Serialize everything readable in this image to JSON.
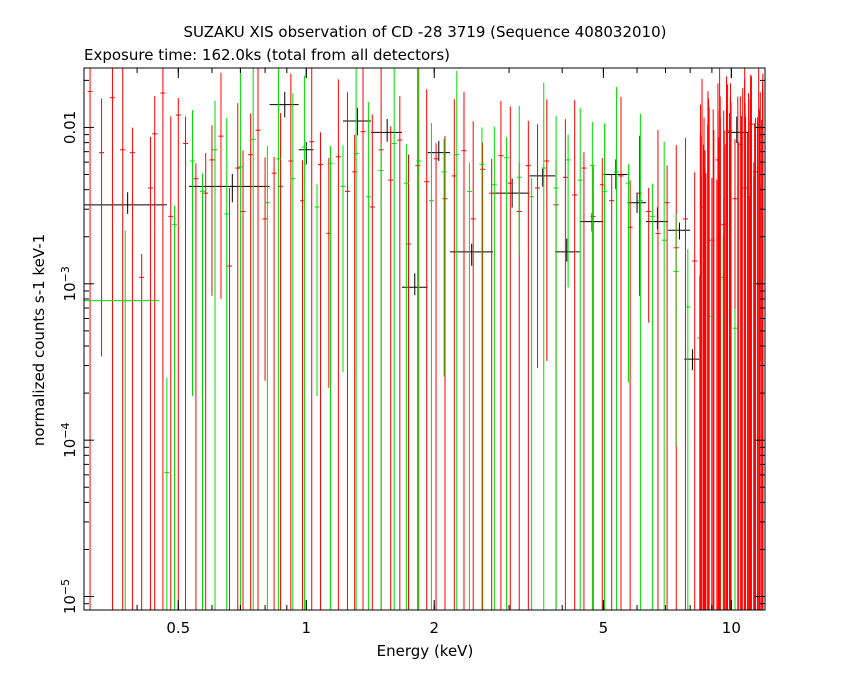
{
  "chart_data": {
    "type": "scatter",
    "title": "SUZAKU XIS observation of CD -28 3719 (Sequence 408032010)",
    "subtitle": "Exposure time: 162.0ks (total from all detectors)",
    "xlabel": "Energy (keV)",
    "ylabel": "normalized counts s-1 keV-1",
    "x_scale": "log",
    "y_scale": "log",
    "xlim": [
      0.3,
      12.0
    ],
    "ylim": [
      8.2e-06,
      0.024
    ],
    "grid": false,
    "legend": "none",
    "x_ticks": [
      {
        "value": 0.5,
        "label": "0.5"
      },
      {
        "value": 1,
        "label": "1"
      },
      {
        "value": 2,
        "label": "2"
      },
      {
        "value": 5,
        "label": "5"
      },
      {
        "value": 10,
        "label": "10"
      }
    ],
    "y_ticks": [
      {
        "value": 1e-05,
        "base": "10",
        "exp": "−5"
      },
      {
        "value": 0.0001,
        "base": "10",
        "exp": "−4"
      },
      {
        "value": 0.001,
        "base": "10",
        "exp": "−3"
      },
      {
        "value": 0.01,
        "base": "0.01",
        "exp": ""
      }
    ],
    "series": [
      {
        "color": "#000000",
        "points": [
          {
            "x": 0.38,
            "xlo": 0.3,
            "xhi": 0.47,
            "y": 0.0032
          },
          {
            "x": 0.67,
            "xlo": 0.53,
            "xhi": 0.82,
            "y": 0.0042
          },
          {
            "x": 0.89,
            "xlo": 0.82,
            "xhi": 0.96,
            "y": 0.014
          },
          {
            "x": 1.0,
            "xlo": 0.96,
            "xhi": 1.04,
            "y": 0.0072
          },
          {
            "x": 1.32,
            "xlo": 1.22,
            "xhi": 1.42,
            "y": 0.011
          },
          {
            "x": 1.55,
            "xlo": 1.42,
            "xhi": 1.68,
            "y": 0.0093
          },
          {
            "x": 1.8,
            "xlo": 1.68,
            "xhi": 1.93,
            "y": 0.00095
          },
          {
            "x": 2.05,
            "xlo": 1.93,
            "xhi": 2.18,
            "y": 0.0069
          },
          {
            "x": 2.45,
            "xlo": 2.18,
            "xhi": 2.75,
            "y": 0.0016
          },
          {
            "x": 3.05,
            "xlo": 2.75,
            "xhi": 3.35,
            "y": 0.0038
          },
          {
            "x": 3.6,
            "xlo": 3.35,
            "xhi": 3.85,
            "y": 0.0049
          },
          {
            "x": 4.1,
            "xlo": 3.85,
            "xhi": 4.4,
            "y": 0.0016
          },
          {
            "x": 4.7,
            "xlo": 4.4,
            "xhi": 5.0,
            "y": 0.0025
          },
          {
            "x": 5.35,
            "xlo": 5.0,
            "xhi": 5.7,
            "y": 0.005
          },
          {
            "x": 6.0,
            "xlo": 5.7,
            "xhi": 6.3,
            "y": 0.0033
          },
          {
            "x": 6.7,
            "xlo": 6.3,
            "xhi": 7.1,
            "y": 0.0025
          },
          {
            "x": 7.55,
            "xlo": 7.1,
            "xhi": 8.0,
            "y": 0.0022
          },
          {
            "x": 8.1,
            "xlo": 7.75,
            "xhi": 8.45,
            "y": 0.00033
          },
          {
            "x": 10.3,
            "xlo": 9.7,
            "xhi": 11.0,
            "y": 0.0093
          }
        ]
      },
      {
        "color": "#ff0000",
        "points": [
          {
            "x": 0.31,
            "y": 0.017
          },
          {
            "x": 0.33,
            "y": 0.0069
          },
          {
            "x": 0.35,
            "y": 0.0155
          },
          {
            "x": 0.37,
            "y": 0.0072
          },
          {
            "x": 0.39,
            "y": 0.0069
          },
          {
            "x": 0.41,
            "y": 0.0011
          },
          {
            "x": 0.43,
            "y": 0.0041
          },
          {
            "x": 0.44,
            "y": 0.0091
          },
          {
            "x": 0.46,
            "y": 0.0166
          },
          {
            "x": 0.48,
            "y": 0.0027
          },
          {
            "x": 0.5,
            "y": 0.012
          },
          {
            "x": 0.52,
            "y": 0.0079
          },
          {
            "x": 0.55,
            "y": 0.0047
          },
          {
            "x": 0.58,
            "y": 0.0038
          },
          {
            "x": 0.6,
            "y": 0.0062
          },
          {
            "x": 0.63,
            "y": 0.0088
          },
          {
            "x": 0.66,
            "y": 0.0013
          },
          {
            "x": 0.69,
            "y": 0.0055
          },
          {
            "x": 0.71,
            "y": 0.0029
          },
          {
            "x": 0.74,
            "y": 0.0067
          },
          {
            "x": 0.77,
            "y": 0.0096
          },
          {
            "x": 0.8,
            "y": 0.0026
          },
          {
            "x": 0.84,
            "y": 0.0051
          },
          {
            "x": 0.87,
            "y": 0.0042
          },
          {
            "x": 0.92,
            "y": 0.0061
          },
          {
            "x": 0.98,
            "y": 0.0034
          },
          {
            "x": 1.03,
            "y": 0.0081
          },
          {
            "x": 1.08,
            "y": 0.0058
          },
          {
            "x": 1.13,
            "y": 0.0021
          },
          {
            "x": 1.19,
            "y": 0.0065
          },
          {
            "x": 1.25,
            "y": 0.0039
          },
          {
            "x": 1.3,
            "y": 0.0052
          },
          {
            "x": 1.36,
            "y": 0.0094
          },
          {
            "x": 1.43,
            "y": 0.0031
          },
          {
            "x": 1.5,
            "y": 0.0072
          },
          {
            "x": 1.58,
            "y": 0.0046
          },
          {
            "x": 1.66,
            "y": 0.0083
          },
          {
            "x": 1.74,
            "y": 0.0018
          },
          {
            "x": 1.83,
            "y": 0.0057
          },
          {
            "x": 1.92,
            "y": 0.0045
          },
          {
            "x": 2.02,
            "y": 0.0063
          },
          {
            "x": 2.12,
            "y": 0.0035
          },
          {
            "x": 2.23,
            "y": 0.0049
          },
          {
            "x": 2.35,
            "y": 0.0071
          },
          {
            "x": 2.47,
            "y": 0.0026
          },
          {
            "x": 2.6,
            "y": 0.0054
          },
          {
            "x": 2.73,
            "y": 0.0038
          },
          {
            "x": 2.87,
            "y": 0.0066
          },
          {
            "x": 3.02,
            "y": 0.0044
          },
          {
            "x": 3.17,
            "y": 0.0029
          },
          {
            "x": 3.33,
            "y": 0.0057
          },
          {
            "x": 3.5,
            "y": 0.0041
          },
          {
            "x": 3.68,
            "y": 0.0061
          },
          {
            "x": 3.87,
            "y": 0.0032
          },
          {
            "x": 4.07,
            "y": 0.0048
          },
          {
            "x": 4.28,
            "y": 0.0037
          },
          {
            "x": 4.5,
            "y": 0.0055
          },
          {
            "x": 4.73,
            "y": 0.0027
          },
          {
            "x": 4.97,
            "y": 0.0043
          },
          {
            "x": 5.23,
            "y": 0.0034
          },
          {
            "x": 5.5,
            "y": 0.0049
          },
          {
            "x": 5.78,
            "y": 0.0023
          },
          {
            "x": 6.08,
            "y": 0.0038
          },
          {
            "x": 6.39,
            "y": 0.0029
          },
          {
            "x": 6.72,
            "y": 0.0021
          },
          {
            "x": 7.06,
            "y": 0.0033
          },
          {
            "x": 7.42,
            "y": 0.0017
          },
          {
            "x": 7.8,
            "y": 0.0026
          },
          {
            "x": 8.2,
            "y": 0.0014
          },
          {
            "x": 8.6,
            "y": 0.0031
          },
          {
            "x": 9.0,
            "y": 0.0019
          },
          {
            "x": 9.3,
            "y": 0.0062
          },
          {
            "x": 9.6,
            "y": 0.0024
          },
          {
            "x": 9.9,
            "y": 0.0095
          },
          {
            "x": 10.2,
            "y": 0.0035
          },
          {
            "x": 10.5,
            "y": 0.0078
          },
          {
            "x": 10.8,
            "y": 0.0041
          },
          {
            "x": 11.1,
            "y": 0.0105
          },
          {
            "x": 11.4,
            "y": 0.0052
          },
          {
            "x": 11.7,
            "y": 0.0089
          }
        ]
      },
      {
        "color": "#00dd00",
        "points": [
          {
            "x": 0.375,
            "xlo": 0.3,
            "xhi": 0.45,
            "y": 0.00078
          },
          {
            "x": 0.47,
            "y": 6.2e-05
          },
          {
            "x": 0.49,
            "y": 0.0024
          },
          {
            "x": 0.54,
            "y": 0.0061
          },
          {
            "x": 0.57,
            "y": 0.0039
          },
          {
            "x": 0.61,
            "y": 0.0072
          },
          {
            "x": 0.65,
            "y": 0.0028
          },
          {
            "x": 0.7,
            "y": 0.0056
          },
          {
            "x": 0.75,
            "y": 0.0084
          },
          {
            "x": 0.81,
            "y": 0.0033
          },
          {
            "x": 0.86,
            "y": 0.0063
          },
          {
            "x": 0.93,
            "y": 0.0047
          },
          {
            "x": 0.99,
            "y": 0.0075
          },
          {
            "x": 1.06,
            "y": 0.0031
          },
          {
            "x": 1.14,
            "y": 0.0059
          },
          {
            "x": 1.22,
            "y": 0.0042
          },
          {
            "x": 1.31,
            "y": 0.0068
          },
          {
            "x": 1.4,
            "y": 0.0036
          },
          {
            "x": 1.5,
            "y": 0.0053
          },
          {
            "x": 1.61,
            "y": 0.0079
          },
          {
            "x": 1.72,
            "y": 0.0044
          },
          {
            "x": 1.84,
            "y": 0.0061
          },
          {
            "x": 1.97,
            "y": 0.0034
          },
          {
            "x": 2.11,
            "y": 0.0052
          },
          {
            "x": 2.26,
            "y": 0.0067
          },
          {
            "x": 2.42,
            "y": 0.0039
          },
          {
            "x": 2.59,
            "y": 0.0058
          },
          {
            "x": 2.77,
            "y": 0.0043
          },
          {
            "x": 2.96,
            "y": 0.0064
          },
          {
            "x": 3.17,
            "y": 0.0048
          },
          {
            "x": 3.39,
            "y": 0.0036
          },
          {
            "x": 3.62,
            "y": 0.0055
          },
          {
            "x": 3.87,
            "y": 0.0041
          },
          {
            "x": 4.13,
            "y": 0.0062
          },
          {
            "x": 4.41,
            "y": 0.0046
          },
          {
            "x": 4.71,
            "y": 0.0057
          },
          {
            "x": 5.03,
            "y": 0.0039
          },
          {
            "x": 5.37,
            "y": 0.0052
          },
          {
            "x": 5.73,
            "y": 0.0044
          },
          {
            "x": 6.11,
            "y": 0.0034
          },
          {
            "x": 6.52,
            "y": 0.0027
          },
          {
            "x": 6.95,
            "y": 0.0019
          },
          {
            "x": 7.41,
            "y": 0.0012
          },
          {
            "x": 7.9,
            "y": 0.00071
          },
          {
            "x": 8.42,
            "y": 0.00045
          },
          {
            "x": 8.98,
            "y": 0.00062
          },
          {
            "x": 9.57,
            "y": 0.0011
          },
          {
            "x": 10.2,
            "y": 0.00052
          }
        ]
      }
    ]
  }
}
